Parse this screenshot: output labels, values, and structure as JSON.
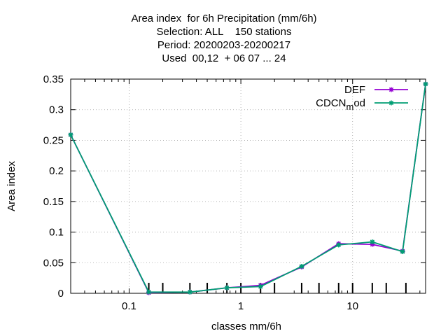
{
  "chart_data": {
    "type": "line",
    "title_lines": [
      "Area index  for 6h Precipitation (mm/6h)",
      "Selection: ALL    150 stations",
      "Period: 20200203-20200217",
      "Used  00,12  + 06 07 ... 24"
    ],
    "xlabel": "classes mm/6h",
    "ylabel": "Area index",
    "x_scale": "log",
    "xlim": [
      0.03,
      45
    ],
    "ylim": [
      0,
      0.35
    ],
    "x_ticks": [
      0.1,
      1,
      10
    ],
    "x_tick_labels": [
      "0.1",
      "1",
      "10"
    ],
    "y_ticks": [
      0,
      0.05,
      0.1,
      0.15,
      0.2,
      0.25,
      0.3,
      0.35
    ],
    "y_tick_labels": [
      "0",
      "0.05",
      "0.1",
      "0.15",
      "0.2",
      "0.25",
      "0.3",
      "0.35"
    ],
    "class_bounds": [
      0.15,
      0.2,
      0.35,
      0.5,
      0.75,
      1.0,
      1.5,
      2.0,
      3.5,
      5.0,
      7.5,
      10.0,
      15.0,
      20.0,
      30.0
    ],
    "grid": true,
    "legend_position": "top-right",
    "series": [
      {
        "name": "DEF",
        "color": "#9400d3",
        "x": [
          0.03,
          0.15,
          0.35,
          0.75,
          1.5,
          3.5,
          7.5,
          15,
          28,
          45
        ],
        "y": [
          0.259,
          0.001,
          0.002,
          0.009,
          0.013,
          0.043,
          0.081,
          0.08,
          0.069,
          0.342
        ]
      },
      {
        "name": "CDCN_mod",
        "legend_main": "CDCN",
        "legend_sub": "m",
        "legend_tail": "od",
        "color": "#009e73",
        "x": [
          0.03,
          0.15,
          0.35,
          0.75,
          1.5,
          3.5,
          7.5,
          15,
          28,
          45
        ],
        "y": [
          0.259,
          0.002,
          0.002,
          0.009,
          0.011,
          0.044,
          0.079,
          0.084,
          0.068,
          0.342
        ]
      }
    ]
  }
}
